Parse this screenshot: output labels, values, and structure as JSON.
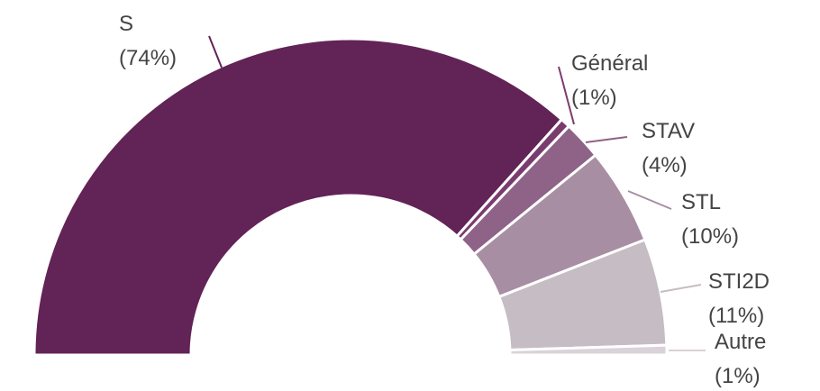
{
  "chart_data": {
    "type": "pie",
    "variant": "half-donut",
    "title": "",
    "categories": [
      "S",
      "Général",
      "STAV",
      "STL",
      "STI2D",
      "Autre"
    ],
    "values": [
      74,
      1,
      4,
      10,
      11,
      1
    ],
    "value_labels": [
      "(74%)",
      "(1%)",
      "(4%)",
      "(10%)",
      "(11%)",
      "(1%)"
    ],
    "colors": [
      "#622356",
      "#7a3c6e",
      "#8f6287",
      "#a88ea3",
      "#c6bcc4",
      "#d9d2d8"
    ],
    "legend": "none",
    "data_labels": "outside-with-leader-lines"
  }
}
